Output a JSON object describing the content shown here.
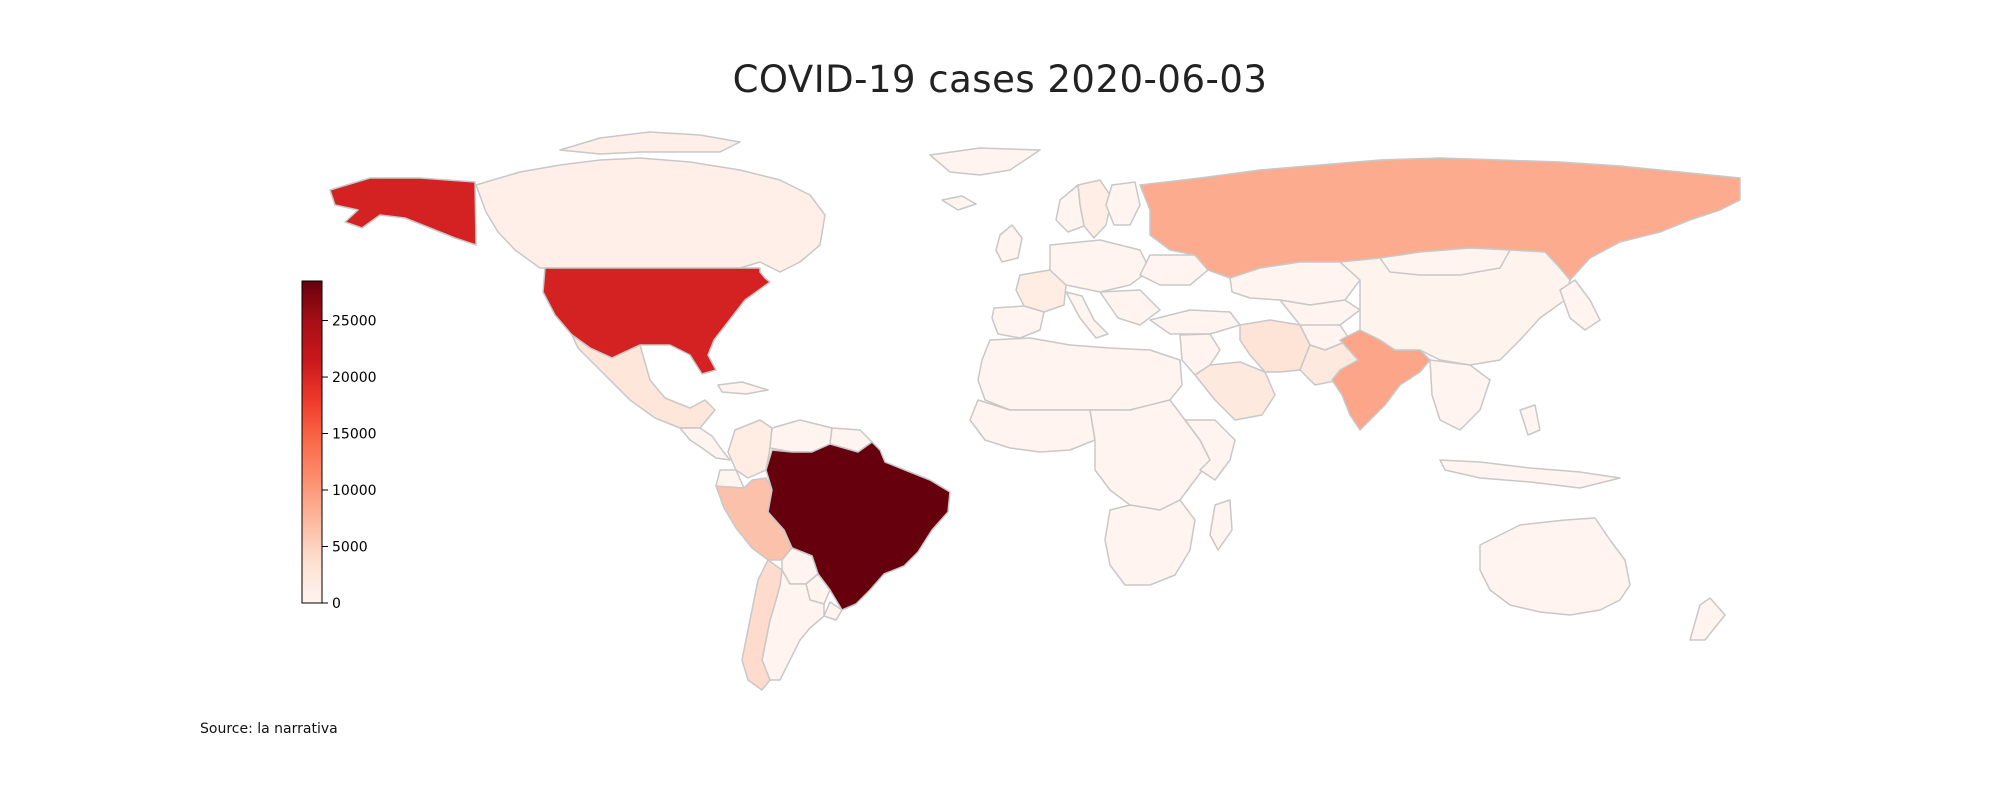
{
  "title": "COVID-19 cases 2020-06-03",
  "source_note": "Source: la narrativa",
  "colors": {
    "border": "#c8c8c8",
    "scale": [
      "#fff5f0",
      "#fee0d2",
      "#fcbba1",
      "#fc9272",
      "#fb6a4a",
      "#ef3b2c",
      "#cb181d",
      "#a50f15",
      "#67000d"
    ]
  },
  "colorbar": {
    "min": 0,
    "max": 28500,
    "ticks": [
      {
        "value": 0,
        "label": "0"
      },
      {
        "value": 5000,
        "label": "5000"
      },
      {
        "value": 10000,
        "label": "10000"
      },
      {
        "value": 15000,
        "label": "15000"
      },
      {
        "value": 20000,
        "label": "20000"
      },
      {
        "value": 25000,
        "label": "25000"
      }
    ]
  },
  "countries": [
    {
      "name": "Brazil",
      "value": 28500
    },
    {
      "name": "United States",
      "value": 20500
    },
    {
      "name": "India",
      "value": 9000
    },
    {
      "name": "Russia",
      "value": 8500
    },
    {
      "name": "Peru",
      "value": 6500
    },
    {
      "name": "Chile",
      "value": 4000
    },
    {
      "name": "Iran",
      "value": 3000
    },
    {
      "name": "Saudi Arabia",
      "value": 2000
    },
    {
      "name": "Pakistan",
      "value": 2000
    },
    {
      "name": "Mexico",
      "value": 2500
    },
    {
      "name": "Colombia",
      "value": 1500
    },
    {
      "name": "South Africa",
      "value": 2000
    },
    {
      "name": "France",
      "value": 1500
    },
    {
      "name": "Sweden",
      "value": 1200
    },
    {
      "name": "Canada",
      "value": 1000
    },
    {
      "name": "China",
      "value": 300
    },
    {
      "name": "Australia",
      "value": 100
    }
  ]
}
